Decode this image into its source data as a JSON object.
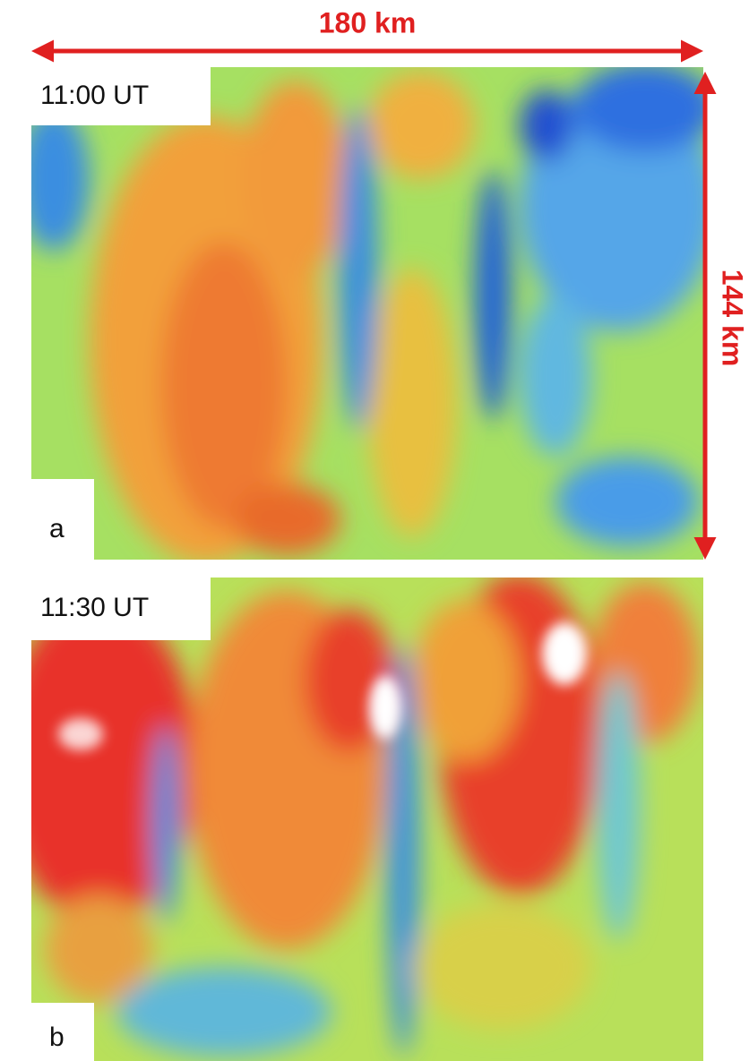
{
  "scale": {
    "width_label": "180 km",
    "height_label": "144 km"
  },
  "panels": [
    {
      "time": "11:00 UT",
      "letter": "a"
    },
    {
      "time": "11:30 UT",
      "letter": "b"
    }
  ]
}
